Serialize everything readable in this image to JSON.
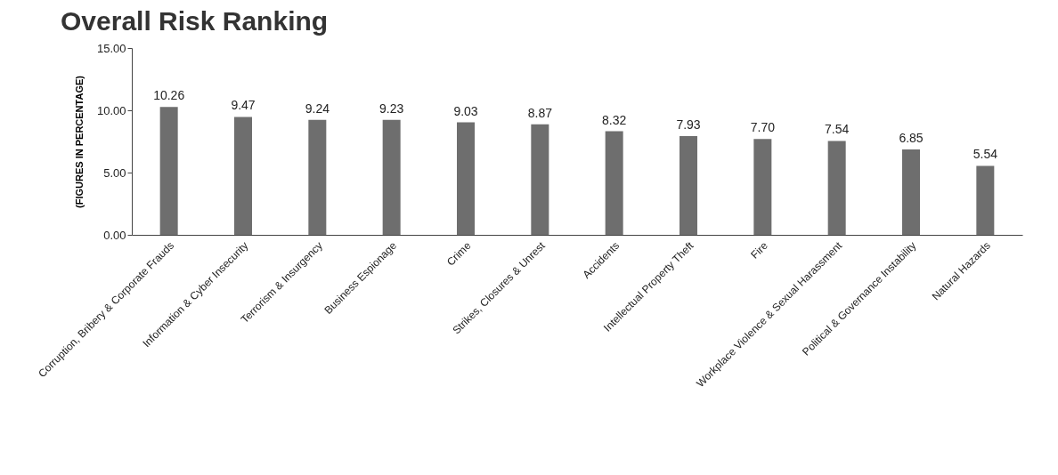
{
  "chart_data": {
    "type": "bar",
    "title": "Overall Risk Ranking",
    "ylabel": "(FIGURES IN PERCENTAGE)",
    "categories": [
      "Corruption, Bribery & Corporate Frauds",
      "Information & Cyber Insecurity",
      "Terrorism & Insurgency",
      "Business Espionage",
      "Crime",
      "Strikes, Closures & Unrest",
      "Accidents",
      "Intellectual Property Theft",
      "Fire",
      "Workplace Violence & Sexual Harassment",
      "Political & Governance Instability",
      "Natural Hazards"
    ],
    "values": [
      10.26,
      9.47,
      9.24,
      9.23,
      9.03,
      8.87,
      8.32,
      7.93,
      7.7,
      7.54,
      6.85,
      5.54
    ],
    "value_labels": [
      "10.26",
      "9.47",
      "9.24",
      "9.23",
      "9.03",
      "8.87",
      "8.32",
      "7.93",
      "7.70",
      "7.54",
      "6.85",
      "5.54"
    ],
    "color": "#6e6e6e",
    "ylim": [
      0,
      15
    ],
    "yticks": [
      {
        "value": 0,
        "label": "0.00"
      },
      {
        "value": 5,
        "label": "5.00"
      },
      {
        "value": 10,
        "label": "10.00"
      },
      {
        "value": 15,
        "label": "15.00"
      }
    ],
    "grid": false
  }
}
